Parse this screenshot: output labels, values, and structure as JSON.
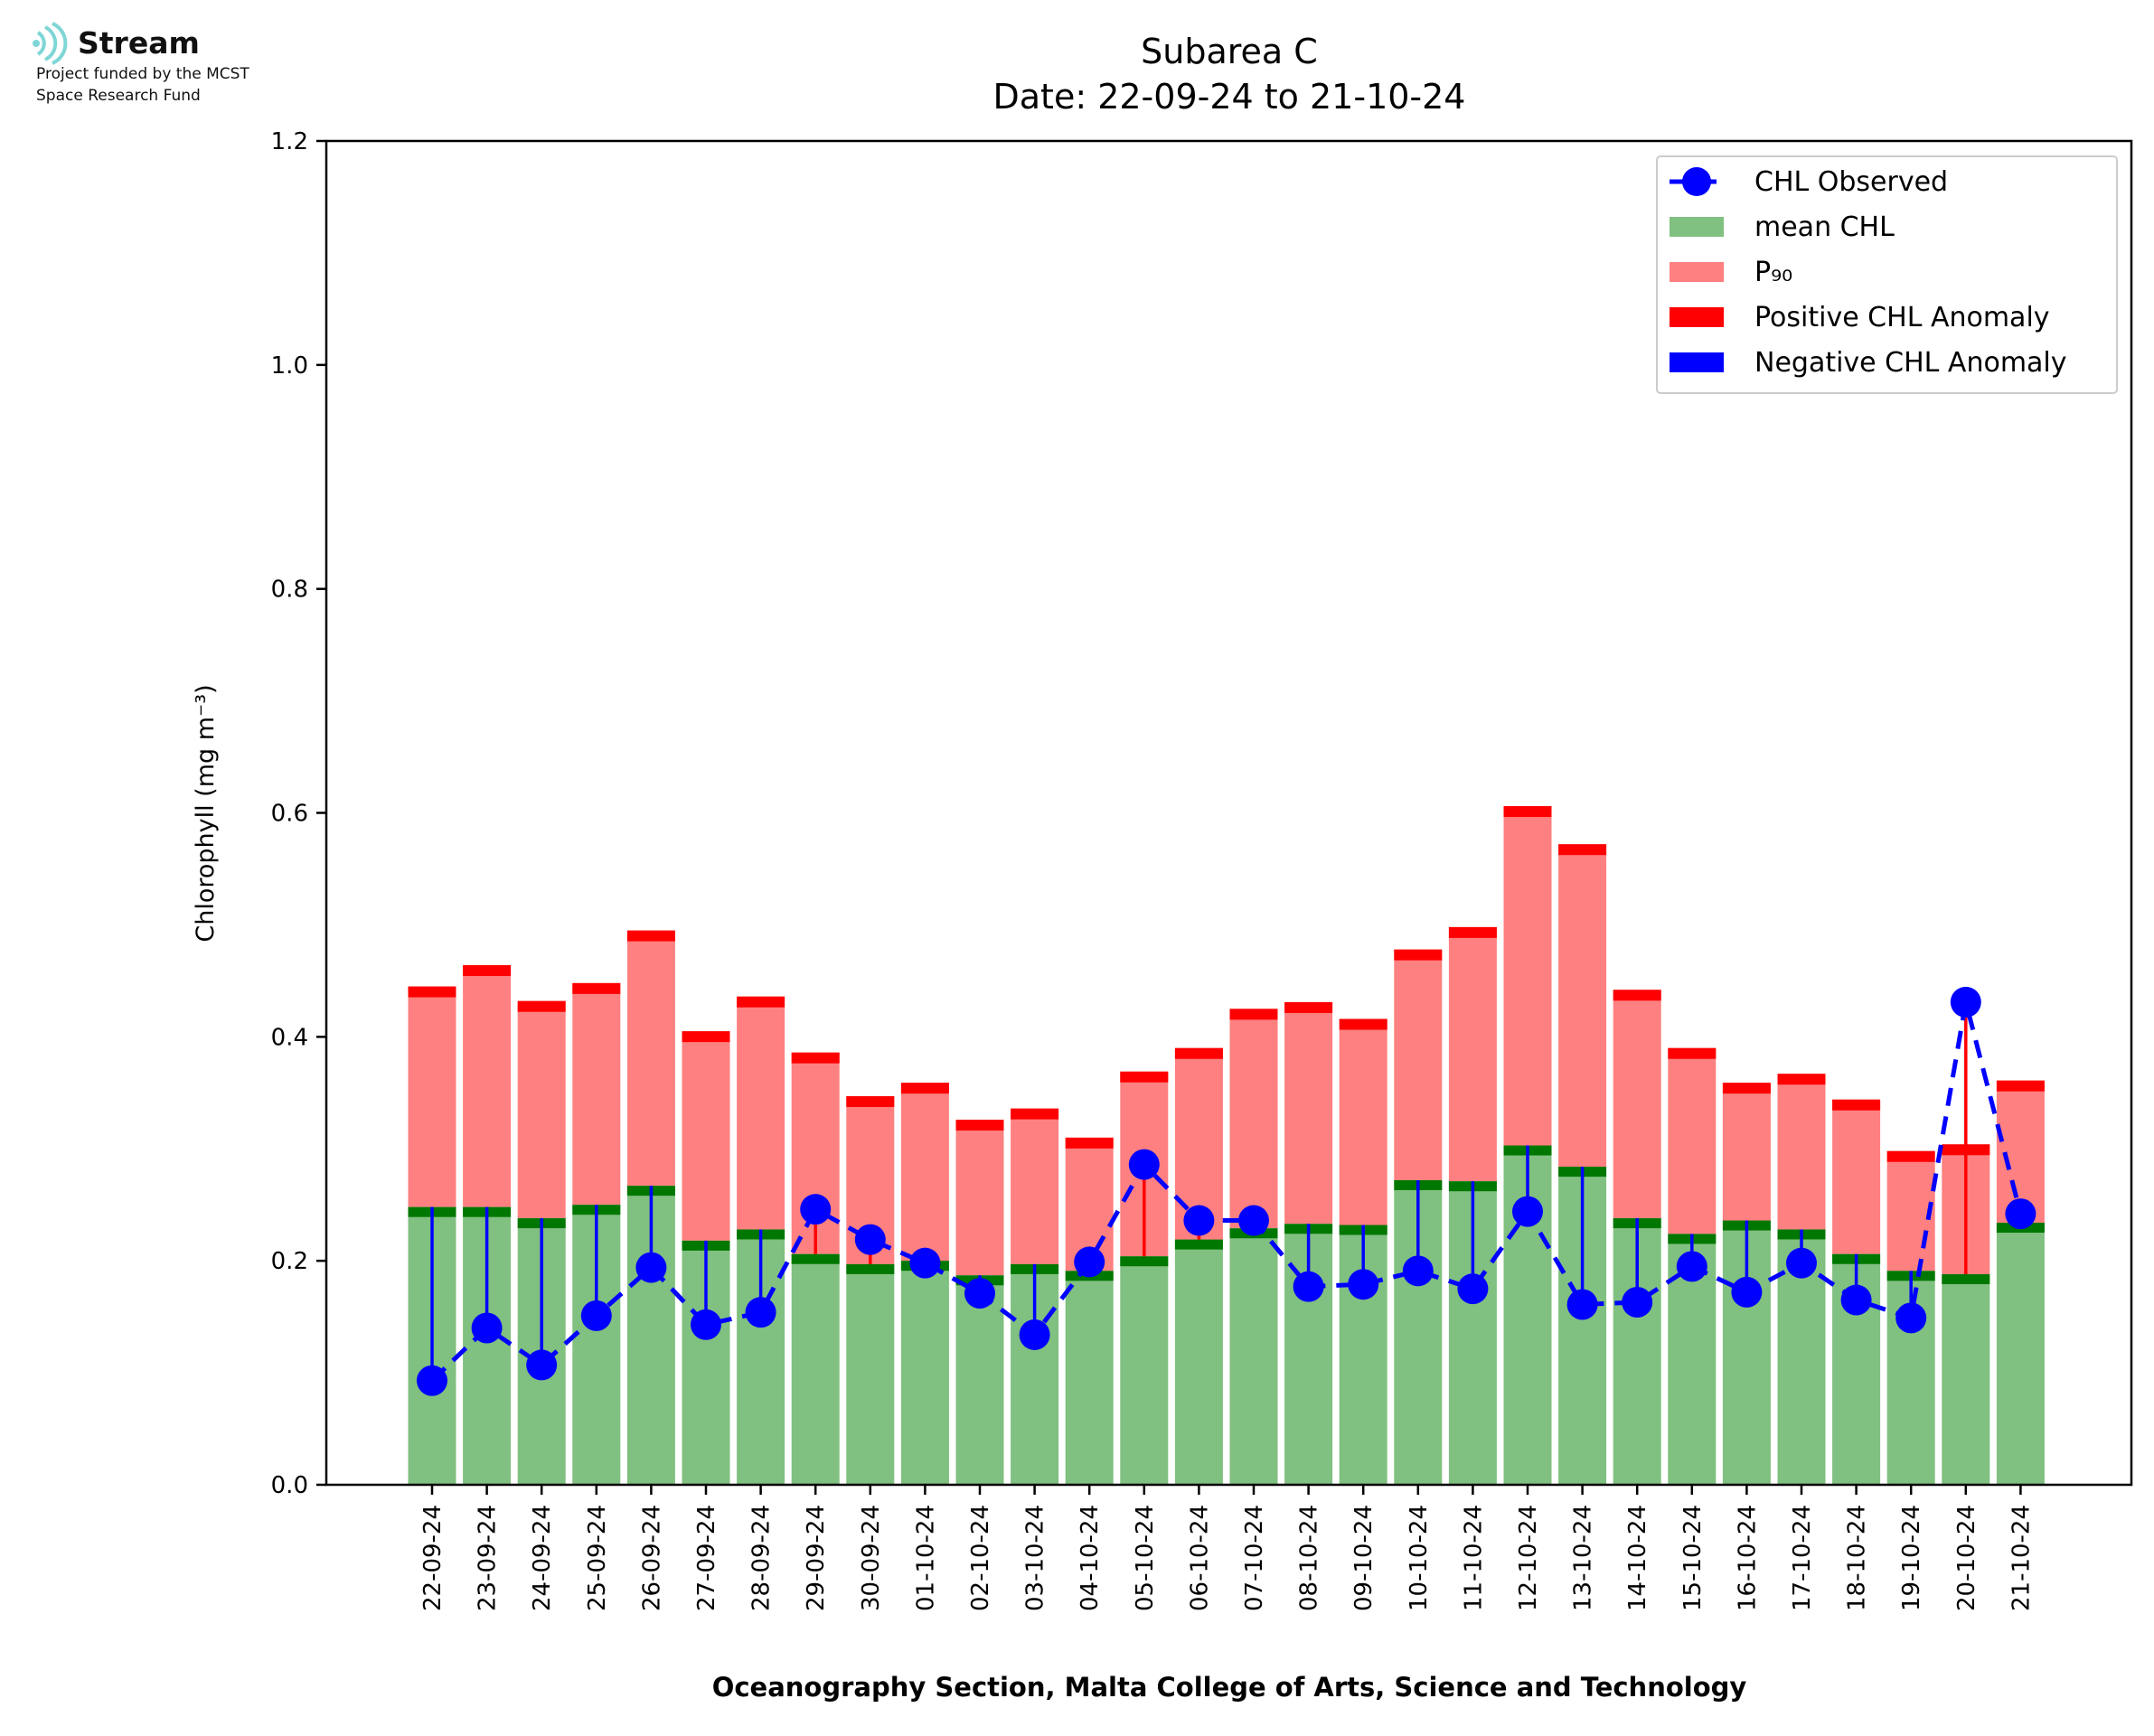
{
  "logo": {
    "name": "Stream",
    "line1": "Project funded by the MCST",
    "line2": "Space Research Fund",
    "icon": "stream-wave-logo",
    "color": "#7fd6d6"
  },
  "chart_data": {
    "type": "bar",
    "title": "Subarea C",
    "subtitle": "Date: 22-09-24 to 21-10-24",
    "xlabel": "Oceanography Section, Malta College of Arts, Science and Technology",
    "ylabel": "Chlorophyll (mg m⁻³)",
    "ylim": [
      0,
      1.2
    ],
    "yticks": [
      "0.0",
      "0.2",
      "0.4",
      "0.6",
      "0.8",
      "1.0",
      "1.2"
    ],
    "grid": false,
    "legend_position": "top-right",
    "categories": [
      "22-09-24",
      "23-09-24",
      "24-09-24",
      "25-09-24",
      "26-09-24",
      "27-09-24",
      "28-09-24",
      "29-09-24",
      "30-09-24",
      "01-10-24",
      "02-10-24",
      "03-10-24",
      "04-10-24",
      "05-10-24",
      "06-10-24",
      "07-10-24",
      "08-10-24",
      "09-10-24",
      "10-10-24",
      "11-10-24",
      "12-10-24",
      "13-10-24",
      "14-10-24",
      "15-10-24",
      "16-10-24",
      "17-10-24",
      "18-10-24",
      "19-10-24",
      "20-10-24",
      "21-10-24"
    ],
    "series": [
      {
        "name": "mean CHL",
        "color": "#80c080",
        "edge_color": "#007700",
        "values": [
          0.248,
          0.248,
          0.238,
          0.25,
          0.267,
          0.218,
          0.228,
          0.206,
          0.197,
          0.2,
          0.187,
          0.197,
          0.191,
          0.204,
          0.219,
          0.229,
          0.233,
          0.232,
          0.272,
          0.271,
          0.303,
          0.284,
          0.238,
          0.224,
          0.236,
          0.228,
          0.206,
          0.191,
          0.188,
          0.234
        ]
      },
      {
        "name": "P₉₀",
        "color": "#ff8080",
        "edge_color": "#ff0000",
        "values": [
          0.445,
          0.464,
          0.432,
          0.448,
          0.495,
          0.405,
          0.436,
          0.386,
          0.347,
          0.359,
          0.326,
          0.336,
          0.31,
          0.369,
          0.39,
          0.425,
          0.431,
          0.416,
          0.478,
          0.498,
          0.606,
          0.572,
          0.442,
          0.39,
          0.359,
          0.367,
          0.344,
          0.298,
          0.304,
          0.361
        ]
      },
      {
        "name": "CHL Observed",
        "color": "#0000ff",
        "values": [
          0.093,
          0.14,
          0.107,
          0.151,
          0.194,
          0.143,
          0.154,
          0.246,
          0.219,
          0.198,
          0.171,
          0.134,
          0.199,
          0.286,
          0.236,
          0.236,
          0.177,
          0.179,
          0.191,
          0.175,
          0.244,
          0.161,
          0.163,
          0.195,
          0.172,
          0.198,
          0.165,
          0.149,
          0.431,
          0.242
        ]
      }
    ],
    "legend": [
      "CHL Observed",
      "mean CHL",
      "P₉₀",
      "Positive CHL Anomaly",
      "Negative CHL Anomaly"
    ],
    "anomaly_colors": {
      "positive": "#ff0000",
      "negative": "#0000ff"
    }
  }
}
